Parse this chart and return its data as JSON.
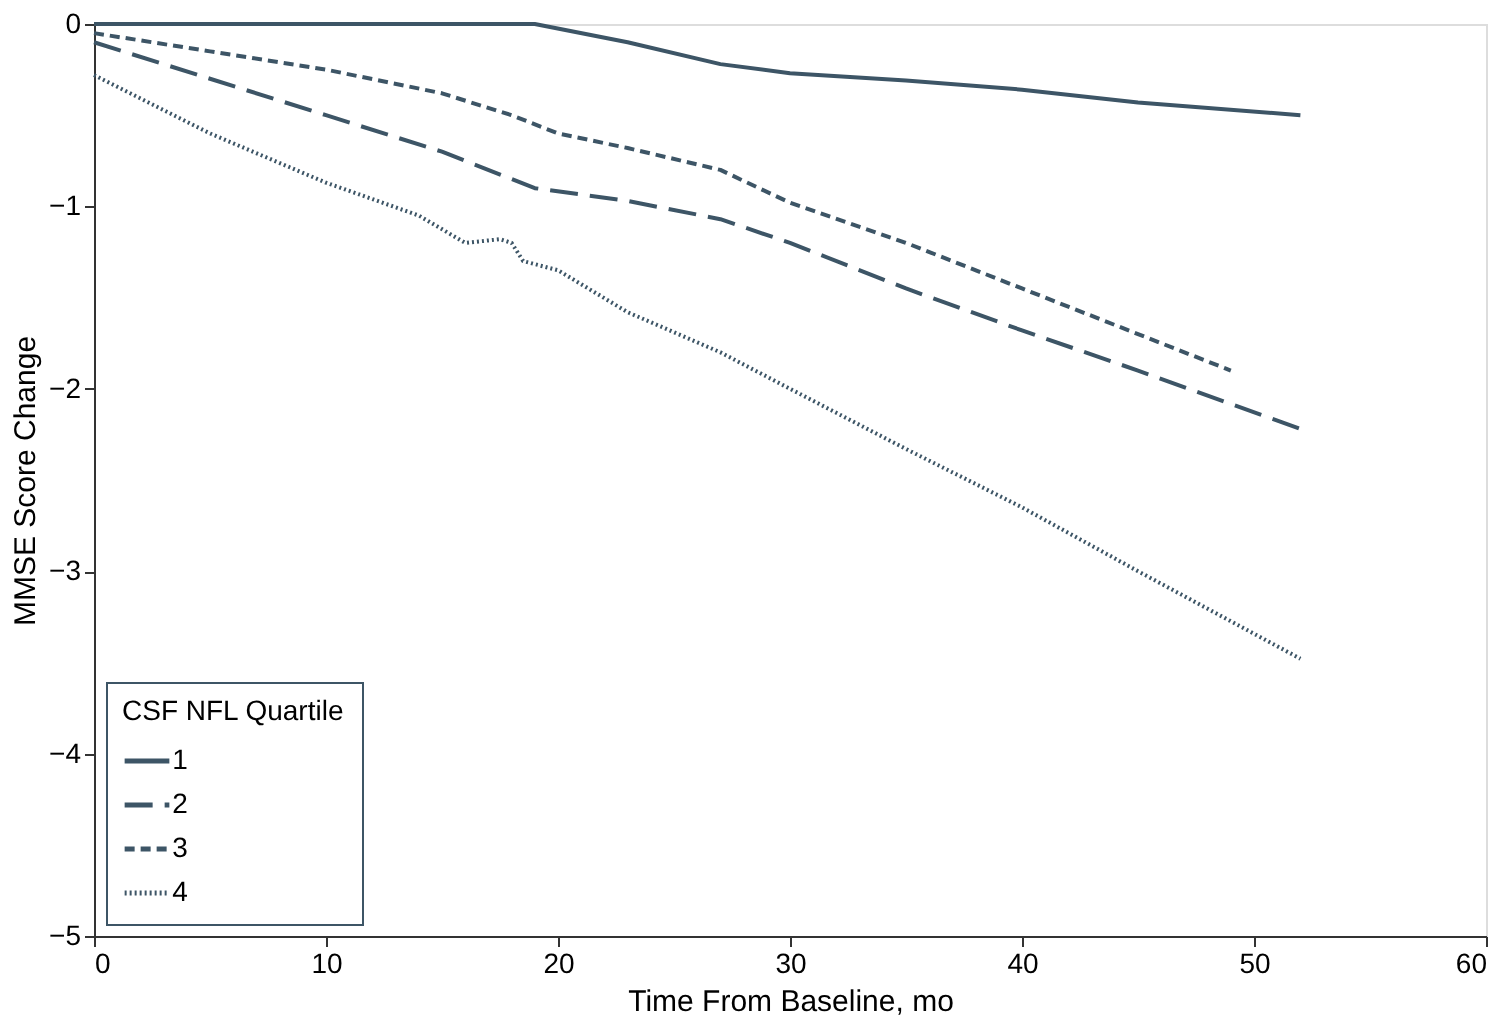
{
  "chart_data": {
    "type": "line",
    "xlabel": "Time From Baseline, mo",
    "ylabel": "MMSE Score Change",
    "legend_title": "CSF NFL Quartile",
    "legend": "bottom left",
    "grid": false,
    "marker": "none",
    "xlim": [
      0,
      60
    ],
    "xticks": [
      0,
      10,
      20,
      30,
      40,
      50,
      60
    ],
    "ylim": [
      -5,
      0
    ],
    "yticks": [
      -5,
      -4,
      -3,
      -2,
      -1,
      0
    ],
    "series": [
      {
        "name": "1",
        "color": "#3d5566",
        "line_style": "solid",
        "x": [
          0,
          10,
          19,
          23,
          27,
          30,
          35,
          40,
          45,
          52
        ],
        "values": [
          0,
          0,
          0,
          -0.1,
          -0.22,
          -0.27,
          -0.31,
          -0.36,
          -0.43,
          -0.5
        ]
      },
      {
        "name": "2",
        "color": "#3d5566",
        "line_style": "longdash",
        "x": [
          0,
          5,
          10,
          15,
          18,
          19,
          23,
          27,
          30,
          35,
          40,
          45,
          52
        ],
        "values": [
          -0.1,
          -0.3,
          -0.5,
          -0.7,
          -0.85,
          -0.9,
          -0.97,
          -1.07,
          -1.2,
          -1.45,
          -1.68,
          -1.9,
          -2.22
        ]
      },
      {
        "name": "3",
        "color": "#3d5566",
        "line_style": "dashed",
        "x": [
          0,
          5,
          10,
          15,
          18,
          20,
          23,
          27,
          30,
          35,
          40,
          45,
          49
        ],
        "values": [
          -0.05,
          -0.15,
          -0.25,
          -0.38,
          -0.5,
          -0.6,
          -0.68,
          -0.8,
          -0.98,
          -1.2,
          -1.45,
          -1.7,
          -1.9
        ]
      },
      {
        "name": "4",
        "color": "#3d5566",
        "line_style": "dotted",
        "x": [
          0,
          5,
          10,
          14,
          16,
          17.5,
          18,
          18.5,
          20,
          23,
          27,
          30,
          35,
          40,
          45,
          52
        ],
        "values": [
          -0.28,
          -0.6,
          -0.87,
          -1.05,
          -1.2,
          -1.18,
          -1.2,
          -1.3,
          -1.35,
          -1.58,
          -1.8,
          -2.0,
          -2.33,
          -2.65,
          -3.0,
          -3.48
        ]
      }
    ]
  }
}
